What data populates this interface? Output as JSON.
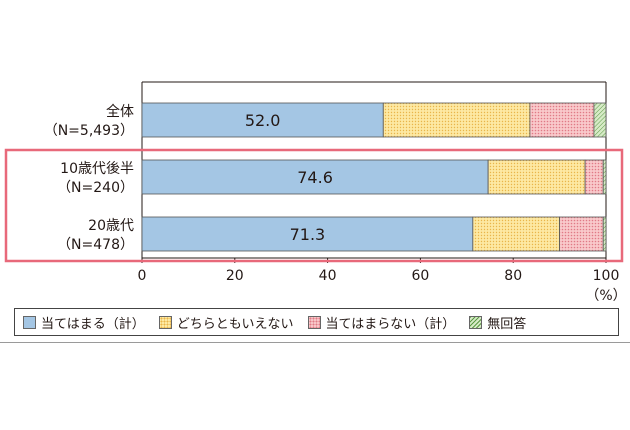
{
  "chart_data": {
    "type": "bar",
    "orientation": "horizontal",
    "stacked": true,
    "categories": [
      [
        "全体",
        "（N=5,493）"
      ],
      [
        "10歳代後半",
        "（N=240）"
      ],
      [
        "20歳代",
        "（N=478）"
      ]
    ],
    "series": [
      {
        "name": "当てはまる（計）",
        "values": [
          52.0,
          74.6,
          71.3
        ],
        "color": "#a4c6e4",
        "labels": [
          "52.0",
          "74.6",
          "71.3"
        ]
      },
      {
        "name": "どちらともいえない",
        "values": [
          31.6,
          20.9,
          18.7
        ],
        "color": "#fde9a3"
      },
      {
        "name": "当てはまらない（計）",
        "values": [
          13.8,
          3.9,
          9.4
        ],
        "color": "#f9c9cb"
      },
      {
        "name": "無回答",
        "values": [
          2.6,
          0.6,
          0.6
        ],
        "color": "#d7ebc7"
      }
    ],
    "x_ticks": [
      "0",
      "20",
      "40",
      "60",
      "80",
      "100"
    ],
    "xlim": [
      0,
      100
    ],
    "x_unit": "（%）",
    "highlight_categories": [
      1,
      2
    ],
    "highlight_color": "#e8697a",
    "legend_position": "bottom"
  }
}
